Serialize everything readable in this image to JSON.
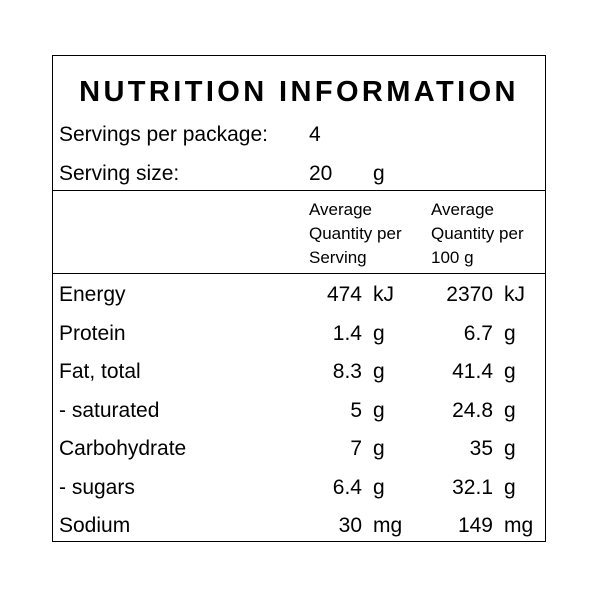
{
  "title": "NUTRITION INFORMATION",
  "servings": {
    "label": "Servings per package:",
    "value": "4"
  },
  "serving_size": {
    "label": "Serving size:",
    "value": "20",
    "unit": "g"
  },
  "headers": {
    "per_serving": [
      "Average",
      "Quantity per",
      "Serving"
    ],
    "per_100g": [
      "Average",
      "Quantity per",
      "100 g"
    ]
  },
  "rows": [
    {
      "name": "Energy",
      "serving": "474",
      "serving_unit": "kJ",
      "per100": "2370",
      "per100_unit": "kJ"
    },
    {
      "name": "Protein",
      "serving": "1.4",
      "serving_unit": "g",
      "per100": "6.7",
      "per100_unit": "g"
    },
    {
      "name": "Fat, total",
      "serving": "8.3",
      "serving_unit": "g",
      "per100": "41.4",
      "per100_unit": "g"
    },
    {
      "name": "- saturated",
      "serving": "5",
      "serving_unit": "g",
      "per100": "24.8",
      "per100_unit": "g"
    },
    {
      "name": "Carbohydrate",
      "serving": "7",
      "serving_unit": "g",
      "per100": "35",
      "per100_unit": "g"
    },
    {
      "name": "- sugars",
      "serving": "6.4",
      "serving_unit": "g",
      "per100": "32.1",
      "per100_unit": "g"
    },
    {
      "name": "Sodium",
      "serving": "30",
      "serving_unit": "mg",
      "per100": "149",
      "per100_unit": "mg"
    }
  ]
}
